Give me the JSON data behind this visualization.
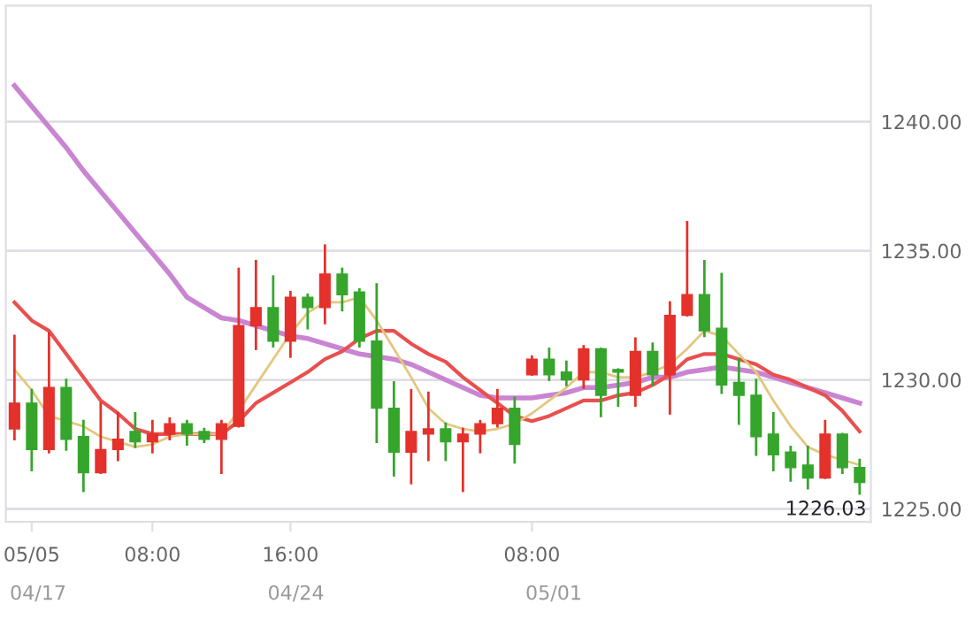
{
  "chart_data": {
    "type": "candlestick",
    "categories": [
      null,
      "05/05",
      null,
      null,
      null,
      null,
      null,
      null,
      "08:00",
      null,
      null,
      null,
      null,
      null,
      null,
      null,
      "16:00",
      null,
      null,
      null,
      null,
      null,
      null,
      null,
      null,
      null,
      null,
      null,
      null,
      null,
      "08:00",
      null,
      null,
      null,
      null,
      null,
      null,
      null,
      null,
      null,
      null,
      null,
      null,
      null,
      null,
      null,
      null,
      null,
      null,
      null
    ],
    "ohlc": [
      [
        1228.1,
        1231.7,
        1227.7,
        1229.1
      ],
      [
        1229.1,
        1229.6,
        1226.5,
        1227.3
      ],
      [
        1227.3,
        1231.8,
        1227.2,
        1229.7
      ],
      [
        1229.7,
        1230.0,
        1227.3,
        1227.7
      ],
      [
        1227.8,
        1228.4,
        1225.7,
        1226.4
      ],
      [
        1226.4,
        1229.1,
        1226.4,
        1227.3
      ],
      [
        1227.3,
        1228.7,
        1226.9,
        1227.7
      ],
      [
        1228.0,
        1228.7,
        1227.4,
        1227.6
      ],
      [
        1227.6,
        1228.4,
        1227.2,
        1227.9
      ],
      [
        1227.9,
        1228.5,
        1227.7,
        1228.3
      ],
      [
        1228.3,
        1228.4,
        1227.5,
        1227.9
      ],
      [
        1228.0,
        1228.1,
        1227.6,
        1227.7
      ],
      [
        1227.7,
        1228.4,
        1226.4,
        1228.3
      ],
      [
        1228.2,
        1234.3,
        1228.2,
        1232.1
      ],
      [
        1232.1,
        1234.6,
        1231.2,
        1232.8
      ],
      [
        1232.8,
        1234.0,
        1231.3,
        1231.5
      ],
      [
        1231.5,
        1233.4,
        1230.9,
        1233.2
      ],
      [
        1233.2,
        1233.3,
        1232.0,
        1232.8
      ],
      [
        1232.8,
        1235.2,
        1232.2,
        1234.1
      ],
      [
        1234.1,
        1234.3,
        1232.7,
        1233.3
      ],
      [
        1233.4,
        1233.5,
        1231.3,
        1231.5
      ],
      [
        1231.5,
        1233.7,
        1227.6,
        1228.9
      ],
      [
        1228.9,
        1229.9,
        1226.3,
        1227.2
      ],
      [
        1227.2,
        1229.6,
        1226.0,
        1228.0
      ],
      [
        1227.9,
        1229.5,
        1226.9,
        1228.1
      ],
      [
        1228.1,
        1228.3,
        1226.9,
        1227.6
      ],
      [
        1227.6,
        1228.1,
        1225.7,
        1227.9
      ],
      [
        1227.9,
        1228.4,
        1227.2,
        1228.3
      ],
      [
        1228.3,
        1229.6,
        1228.2,
        1228.9
      ],
      [
        1228.9,
        1229.3,
        1226.8,
        1227.5
      ],
      [
        1230.2,
        1230.9,
        1230.2,
        1230.8
      ],
      [
        1230.8,
        1231.2,
        1230.0,
        1230.2
      ],
      [
        1230.3,
        1230.7,
        1229.8,
        1230.0
      ],
      [
        1230.0,
        1231.3,
        1229.7,
        1231.2
      ],
      [
        1231.2,
        1231.2,
        1228.6,
        1229.4
      ],
      [
        1230.4,
        1230.4,
        1229.0,
        1230.3
      ],
      [
        1229.4,
        1231.6,
        1229.0,
        1231.1
      ],
      [
        1231.1,
        1231.4,
        1229.8,
        1230.2
      ],
      [
        1230.2,
        1233.0,
        1228.7,
        1232.5
      ],
      [
        1232.5,
        1236.1,
        1232.5,
        1233.3
      ],
      [
        1233.3,
        1234.6,
        1231.7,
        1231.9
      ],
      [
        1232.0,
        1234.1,
        1229.5,
        1229.8
      ],
      [
        1229.9,
        1230.8,
        1228.3,
        1229.4
      ],
      [
        1229.4,
        1230.0,
        1227.1,
        1227.8
      ],
      [
        1227.9,
        1228.7,
        1226.5,
        1227.1
      ],
      [
        1227.2,
        1227.4,
        1226.1,
        1226.6
      ],
      [
        1226.7,
        1227.4,
        1225.8,
        1226.2
      ],
      [
        1226.2,
        1228.4,
        1226.2,
        1227.9
      ],
      [
        1227.9,
        1227.9,
        1226.4,
        1226.6
      ],
      [
        1226.6,
        1226.9,
        1225.6,
        1226.03
      ]
    ],
    "colors": [
      "#e4312b",
      "#36a52c",
      "#e4312b",
      "#36a52c",
      "#36a52c",
      "#e4312b",
      "#e4312b",
      "#36a52c",
      "#e4312b",
      "#e4312b",
      "#36a52c",
      "#36a52c",
      "#e4312b",
      "#e4312b",
      "#e4312b",
      "#36a52c",
      "#e4312b",
      "#36a52c",
      "#e4312b",
      "#36a52c",
      "#36a52c",
      "#36a52c",
      "#36a52c",
      "#e4312b",
      "#e4312b",
      "#36a52c",
      "#e4312b",
      "#e4312b",
      "#e4312b",
      "#36a52c",
      "#e4312b",
      "#36a52c",
      "#36a52c",
      "#e4312b",
      "#36a52c",
      "#36a52c",
      "#e4312b",
      "#36a52c",
      "#e4312b",
      "#e4312b",
      "#36a52c",
      "#36a52c",
      "#36a52c",
      "#36a52c",
      "#36a52c",
      "#36a52c",
      "#36a52c",
      "#e4312b",
      "#36a52c",
      "#36a52c"
    ],
    "series": [
      {
        "type": "line",
        "color": "#c985d2",
        "values": [
          1241.4,
          1240.6,
          1239.8,
          1239.0,
          1238.1,
          1237.3,
          1236.5,
          1235.7,
          1234.9,
          1234.1,
          1233.2,
          1232.8,
          1232.4,
          1232.3,
          1232.1,
          1231.9,
          1231.7,
          1231.6,
          1231.4,
          1231.2,
          1231.0,
          1230.9,
          1230.8,
          1230.6,
          1230.3,
          1230.0,
          1229.7,
          1229.4,
          1229.3,
          1229.3,
          1229.3,
          1229.4,
          1229.5,
          1229.7,
          1229.7,
          1229.8,
          1229.9,
          1230.1,
          1230.1,
          1230.3,
          1230.4,
          1230.5,
          1230.4,
          1230.3,
          1230.1,
          1229.9,
          1229.7,
          1229.5,
          1229.3,
          1229.1
        ]
      },
      {
        "type": "line",
        "color": "#e8504f",
        "values": [
          1233.0,
          1232.3,
          1231.9,
          1231.0,
          1230.1,
          1229.2,
          1228.7,
          1228.1,
          1227.9,
          1227.9,
          1227.9,
          1227.9,
          1227.9,
          1228.4,
          1229.1,
          1229.5,
          1229.9,
          1230.3,
          1230.8,
          1231.1,
          1231.6,
          1231.9,
          1231.9,
          1231.4,
          1231.0,
          1230.7,
          1230.1,
          1229.6,
          1229.1,
          1228.6,
          1228.4,
          1228.6,
          1228.9,
          1229.2,
          1229.2,
          1229.4,
          1229.5,
          1229.8,
          1230.2,
          1230.8,
          1231.0,
          1231.0,
          1230.8,
          1230.6,
          1230.2,
          1230.0,
          1229.7,
          1229.4,
          1228.8,
          1228.0
        ]
      },
      {
        "type": "line",
        "color": "#e3c77f",
        "values": [
          1230.4,
          1229.6,
          1228.6,
          1228.4,
          1228.2,
          1227.8,
          1227.6,
          1227.4,
          1227.5,
          1227.8,
          1227.9,
          1227.9,
          1227.9,
          1228.8,
          1229.8,
          1230.8,
          1231.8,
          1232.6,
          1233.0,
          1233.0,
          1233.2,
          1232.3,
          1231.2,
          1230.1,
          1228.9,
          1228.3,
          1228.1,
          1228.0,
          1228.1,
          1228.3,
          1228.7,
          1229.2,
          1229.7,
          1230.3,
          1230.3,
          1230.1,
          1230.1,
          1230.3,
          1230.6,
          1231.2,
          1231.9,
          1231.7,
          1231.0,
          1230.3,
          1229.2,
          1228.2,
          1227.4,
          1227.1,
          1226.9,
          1226.7
        ]
      }
    ],
    "ylim": [
      1224.5,
      1244.5
    ],
    "yticks": [
      {
        "value": 1225,
        "label": "1225.00"
      },
      {
        "value": 1230,
        "label": "1230.00"
      },
      {
        "value": 1235,
        "label": "1235.00"
      },
      {
        "value": 1240,
        "label": "1240.00"
      }
    ],
    "grid": "y",
    "annotations": [
      "1226.03",
      "04/17",
      "04/24",
      "05/01"
    ]
  }
}
